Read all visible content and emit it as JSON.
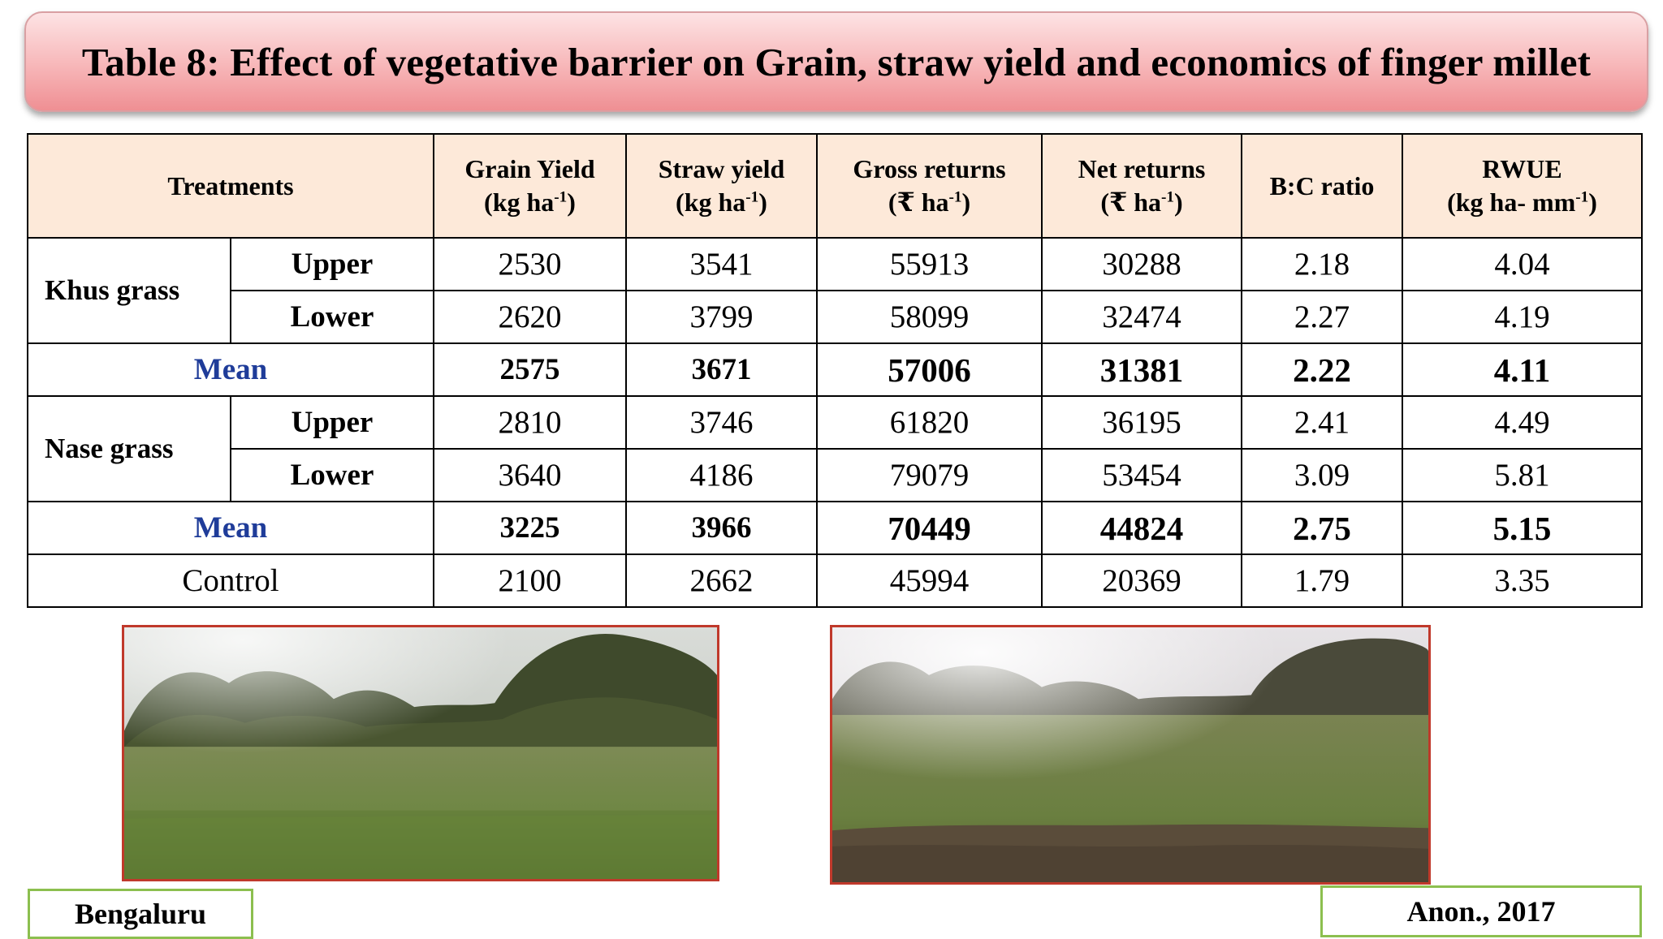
{
  "title": "Table 8: Effect of vegetative barrier on Grain, straw yield and economics of finger millet",
  "table": {
    "headers": {
      "treatments": "Treatments",
      "grain": {
        "line1": "Grain Yield",
        "line2": "(kg ha",
        "sup": "-1",
        "close": ")"
      },
      "straw": {
        "line1": "Straw yield",
        "line2": "(kg ha",
        "sup": "-1",
        "close": ")"
      },
      "gross": {
        "line1": "Gross returns",
        "line2": "(₹ ha",
        "sup": "-1",
        "close": ")"
      },
      "net": {
        "line1": "Net returns",
        "line2": "(₹ ha",
        "sup": "-1",
        "close": ")"
      },
      "bc": "B:C ratio",
      "rwue": {
        "line1": "RWUE",
        "line2": "(kg ha- mm",
        "sup": "-1",
        "close": ")"
      }
    },
    "rows": {
      "khus_upper": {
        "group": "Khus grass",
        "position": "Upper",
        "grain": "2530",
        "straw": "3541",
        "gross": "55913",
        "net": "30288",
        "bc": "2.18",
        "rwue": "4.04"
      },
      "khus_lower": {
        "position": "Lower",
        "grain": "2620",
        "straw": "3799",
        "gross": "58099",
        "net": "32474",
        "bc": "2.27",
        "rwue": "4.19"
      },
      "khus_mean": {
        "label": "Mean",
        "grain": "2575",
        "straw": "3671",
        "gross": "57006",
        "net": "31381",
        "bc": "2.22",
        "rwue": "4.11"
      },
      "nase_upper": {
        "group": "Nase grass",
        "position": "Upper",
        "grain": "2810",
        "straw": "3746",
        "gross": "61820",
        "net": "36195",
        "bc": "2.41",
        "rwue": "4.49"
      },
      "nase_lower": {
        "position": "Lower",
        "grain": "3640",
        "straw": "4186",
        "gross": "79079",
        "net": "53454",
        "bc": "3.09",
        "rwue": "5.81"
      },
      "nase_mean": {
        "label": "Mean",
        "grain": "3225",
        "straw": "3966",
        "gross": "70449",
        "net": "44824",
        "bc": "2.75",
        "rwue": "5.15"
      },
      "control": {
        "label": "Control",
        "grain": "2100",
        "straw": "2662",
        "gross": "45994",
        "net": "20369",
        "bc": "1.79",
        "rwue": "3.35"
      }
    }
  },
  "footer": {
    "location": "Bengaluru",
    "citation": "Anon., 2017"
  },
  "colors": {
    "banner": "#f7b6b8",
    "header_fill": "#fde9d9",
    "mean_text": "#1f3c99",
    "photo_border": "#c0392b",
    "tag_border": "#8cbf4f"
  }
}
